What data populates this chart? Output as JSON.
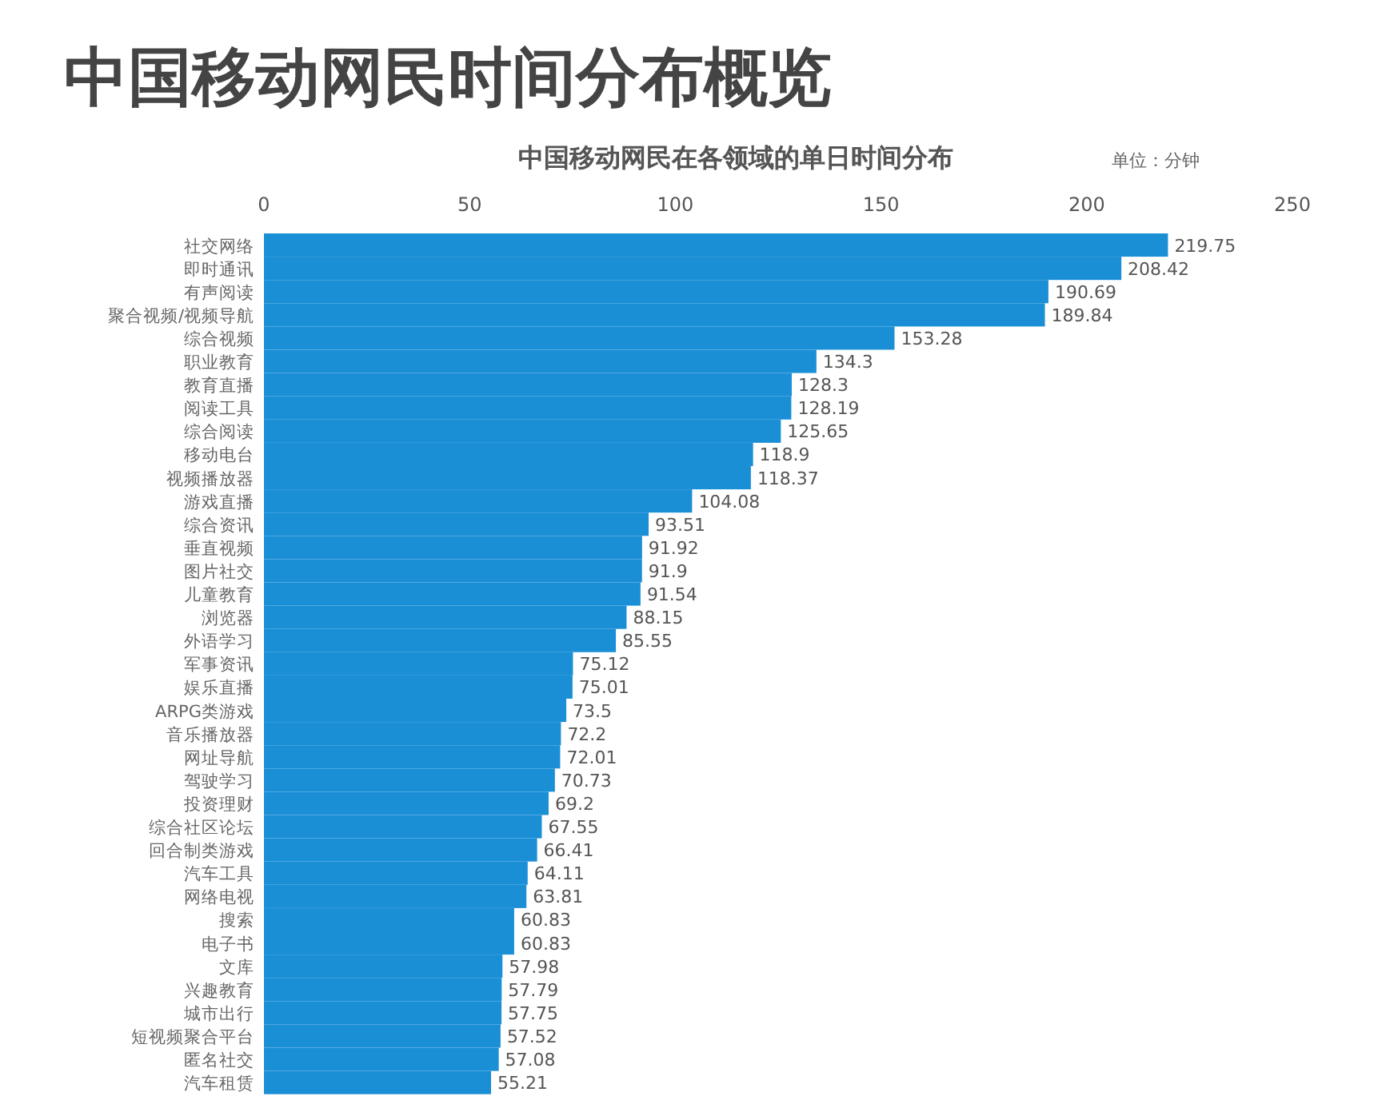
{
  "chart_data": {
    "type": "bar",
    "orientation": "horizontal",
    "title": "中国移动网民时间分布概览",
    "subtitle": "中国移动网民在各领域的单日时间分布",
    "annotations": [
      "单位：分钟"
    ],
    "categories": [
      "社交网络",
      "即时通讯",
      "有声阅读",
      "聚合视频/视频导航",
      "综合视频",
      "职业教育",
      "教育直播",
      "阅读工具",
      "综合阅读",
      "移动电台",
      "视频播放器",
      "游戏直播",
      "综合资讯",
      "垂直视频",
      "图片社交",
      "儿童教育",
      "浏览器",
      "外语学习",
      "军事资讯",
      "娱乐直播",
      "ARPG类游戏",
      "音乐播放器",
      "网址导航",
      "驾驶学习",
      "投资理财",
      "综合社区论坛",
      "回合制类游戏",
      "汽车工具",
      "网络电视",
      "搜索",
      "电子书",
      "文库",
      "兴趣教育",
      "城市出行",
      "短视频聚合平台",
      "匿名社交",
      "汽车租赁"
    ],
    "values": [
      219.75,
      208.42,
      190.69,
      189.84,
      153.28,
      134.3,
      128.3,
      128.19,
      125.65,
      118.9,
      118.37,
      104.08,
      93.51,
      91.92,
      91.9,
      91.54,
      88.15,
      85.55,
      75.12,
      75.01,
      73.5,
      72.2,
      72.01,
      70.73,
      69.2,
      67.55,
      66.41,
      64.11,
      63.81,
      60.83,
      60.83,
      57.98,
      57.79,
      57.75,
      57.52,
      57.08,
      55.21
    ],
    "color": "#1b8fd6",
    "xlim": [
      0,
      250
    ],
    "xticks": [
      0,
      50,
      100,
      150,
      200,
      250
    ],
    "data_labels": true
  }
}
